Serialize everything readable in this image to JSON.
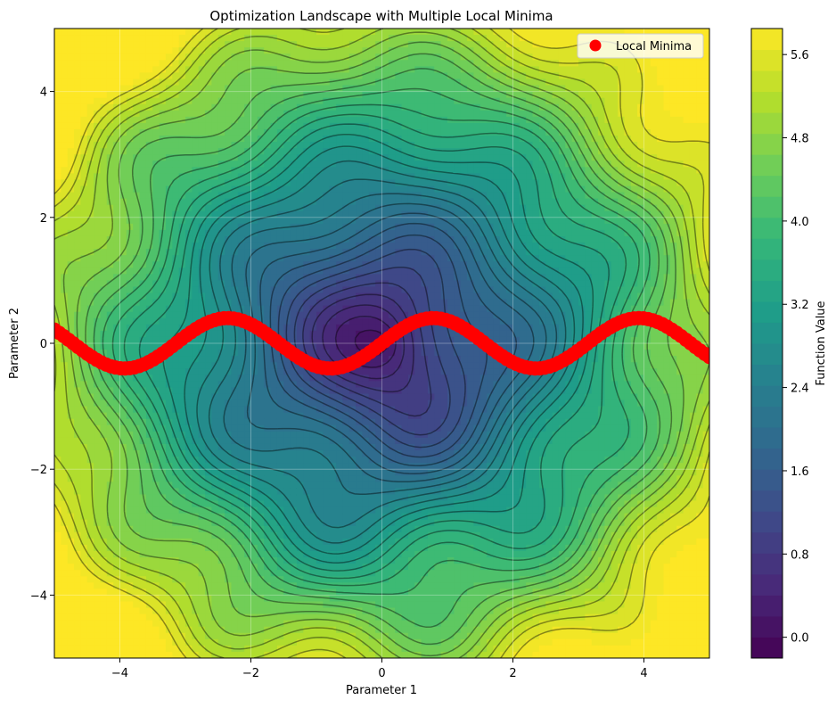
{
  "chart_data": {
    "type": "heatmap",
    "subtype": "filled-contour",
    "title": "Optimization Landscape with Multiple Local Minima",
    "xlabel": "Parameter 1",
    "ylabel": "Parameter 2",
    "xlim": [
      -5,
      5
    ],
    "ylim": [
      -5,
      5
    ],
    "x_ticks": [
      -4,
      -2,
      0,
      2,
      4
    ],
    "y_ticks": [
      -4,
      -2,
      0,
      2,
      4
    ],
    "x_tick_labels": [
      "−4",
      "−2",
      "0",
      "2",
      "4"
    ],
    "y_tick_labels": [
      "−4",
      "−2",
      "0",
      "2",
      "4"
    ],
    "grid": true,
    "colormap": "viridis",
    "colorbar": {
      "label": "Function Value",
      "range": [
        -0.2,
        5.85
      ],
      "ticks": [
        0.0,
        0.8,
        1.6,
        2.4,
        3.2,
        4.0,
        4.8,
        5.6
      ],
      "tick_labels": [
        "0.0",
        "0.8",
        "1.6",
        "2.4",
        "3.2",
        "4.0",
        "4.8",
        "5.6"
      ]
    },
    "surface": {
      "description_formula": "z = sqrt(x^2 + y^2) + 0.5*sin(2x)*cos(2y) + 0.5*sin(2y)*cos(2x)... (approx.)",
      "levels": 30
    },
    "series": [
      {
        "name": "Local Minima",
        "type": "scatter",
        "color": "#ff0000",
        "marker": "circle",
        "curve": "y = 0.4*sin(2x)",
        "x_range": [
          -5,
          5
        ],
        "points": 140
      }
    ],
    "legend": {
      "entries": [
        "Local Minima"
      ],
      "placement": "top-right"
    }
  }
}
